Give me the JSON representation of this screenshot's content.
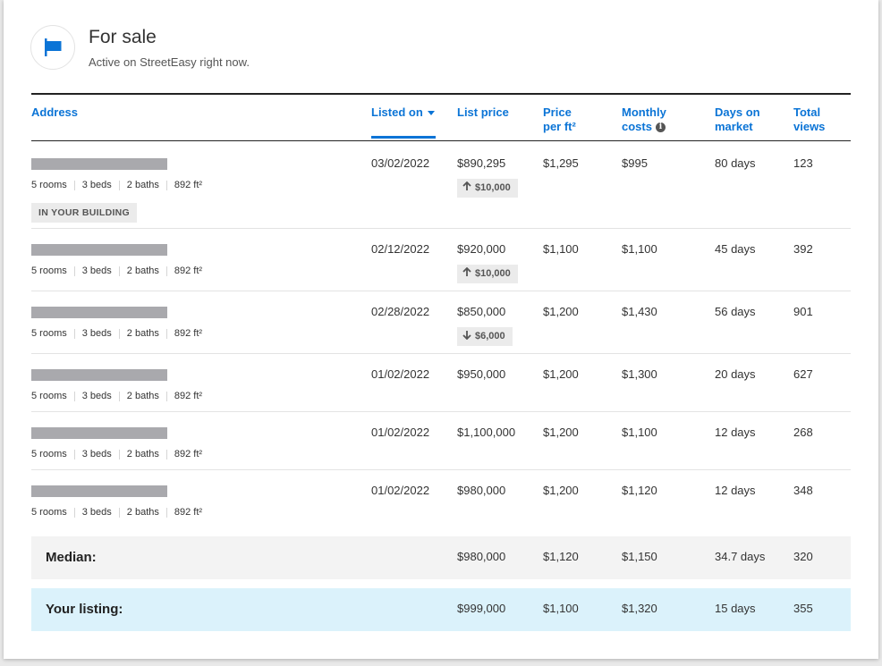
{
  "header": {
    "title": "For sale",
    "subtitle": "Active on StreetEasy right now."
  },
  "columns": {
    "address": "Address",
    "listed_on": "Listed on",
    "list_price": "List price",
    "price_per_ft": "Price per ft²",
    "monthly_costs": "Monthly costs",
    "days_on_market": "Days on market",
    "total_views": "Total views"
  },
  "column_lines": {
    "price_per_ft_1": "Price",
    "price_per_ft_2": "per ft²",
    "monthly_1": "Monthly",
    "monthly_2": "costs",
    "days_1": "Days on",
    "days_2": "market",
    "views_1": "Total",
    "views_2": "views"
  },
  "listings": [
    {
      "rooms": "5 rooms",
      "beds": "3 beds",
      "baths": "2 baths",
      "size": "892 ft²",
      "tag": "IN YOUR BUILDING",
      "listed_on": "03/02/2022",
      "list_price": "$890,295",
      "price_change": "$10,000",
      "change_dir": "up",
      "price_per_ft": "$1,295",
      "monthly": "$995",
      "days": "80 days",
      "views": "123"
    },
    {
      "rooms": "5 rooms",
      "beds": "3 beds",
      "baths": "2 baths",
      "size": "892 ft²",
      "tag": "",
      "listed_on": "02/12/2022",
      "list_price": "$920,000",
      "price_change": "$10,000",
      "change_dir": "up",
      "price_per_ft": "$1,100",
      "monthly": "$1,100",
      "days": "45 days",
      "views": "392"
    },
    {
      "rooms": "5 rooms",
      "beds": "3 beds",
      "baths": "2 baths",
      "size": "892 ft²",
      "tag": "",
      "listed_on": "02/28/2022",
      "list_price": "$850,000",
      "price_change": "$6,000",
      "change_dir": "down",
      "price_per_ft": "$1,200",
      "monthly": "$1,430",
      "days": "56 days",
      "views": "901"
    },
    {
      "rooms": "5 rooms",
      "beds": "3 beds",
      "baths": "2 baths",
      "size": "892 ft²",
      "tag": "",
      "listed_on": "01/02/2022",
      "list_price": "$950,000",
      "price_change": "",
      "change_dir": "",
      "price_per_ft": "$1,200",
      "monthly": "$1,300",
      "days": "20 days",
      "views": "627"
    },
    {
      "rooms": "5 rooms",
      "beds": "3 beds",
      "baths": "2 baths",
      "size": "892 ft²",
      "tag": "",
      "listed_on": "01/02/2022",
      "list_price": "$1,100,000",
      "price_change": "",
      "change_dir": "",
      "price_per_ft": "$1,200",
      "monthly": "$1,100",
      "days": "12 days",
      "views": "268"
    },
    {
      "rooms": "5 rooms",
      "beds": "3 beds",
      "baths": "2 baths",
      "size": "892 ft²",
      "tag": "",
      "listed_on": "01/02/2022",
      "list_price": "$980,000",
      "price_change": "",
      "change_dir": "",
      "price_per_ft": "$1,200",
      "monthly": "$1,120",
      "days": "12 days",
      "views": "348"
    }
  ],
  "median": {
    "label": "Median:",
    "list_price": "$980,000",
    "price_per_ft": "$1,120",
    "monthly": "$1,150",
    "days": "34.7 days",
    "views": "320"
  },
  "your_listing": {
    "label": "Your listing:",
    "list_price": "$999,000",
    "price_per_ft": "$1,100",
    "monthly": "$1,320",
    "days": "15 days",
    "views": "355"
  },
  "colors": {
    "accent": "#0b74d6",
    "your_listing_bg": "#dbf2fb",
    "median_bg": "#f3f3f3"
  },
  "icons": {
    "header": "flag-icon",
    "up": "arrow-up-icon",
    "down": "arrow-down-icon",
    "info": "info-icon",
    "sort": "caret-down-icon"
  }
}
